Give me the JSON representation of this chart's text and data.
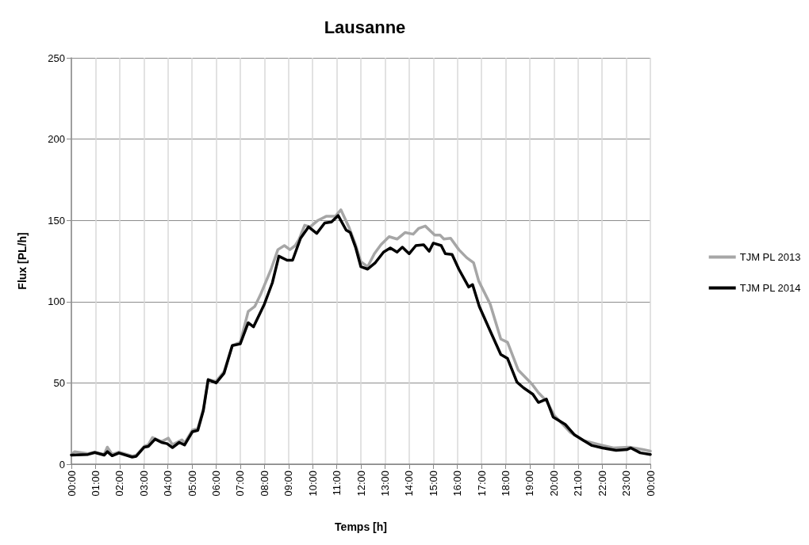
{
  "chart_data": {
    "type": "line",
    "title": "Lausanne",
    "xlabel": "Temps [h]",
    "ylabel": "Flux [PL/h]",
    "xlim": [
      0,
      24
    ],
    "xticks": [
      {
        "value": 0,
        "label": "00:00"
      },
      {
        "value": 1,
        "label": "01:00"
      },
      {
        "value": 2,
        "label": "02:00"
      },
      {
        "value": 3,
        "label": "03:00"
      },
      {
        "value": 4,
        "label": "04:00"
      },
      {
        "value": 5,
        "label": "05:00"
      },
      {
        "value": 6,
        "label": "06:00"
      },
      {
        "value": 7,
        "label": "07:00"
      },
      {
        "value": 8,
        "label": "08:00"
      },
      {
        "value": 9,
        "label": "09:00"
      },
      {
        "value": 10,
        "label": "10:00"
      },
      {
        "value": 11,
        "label": "11:00"
      },
      {
        "value": 12,
        "label": "12:00"
      },
      {
        "value": 13,
        "label": "13:00"
      },
      {
        "value": 14,
        "label": "14:00"
      },
      {
        "value": 15,
        "label": "15:00"
      },
      {
        "value": 16,
        "label": "16:00"
      },
      {
        "value": 17,
        "label": "17:00"
      },
      {
        "value": 18,
        "label": "18:00"
      },
      {
        "value": 19,
        "label": "19:00"
      },
      {
        "value": 20,
        "label": "20:00"
      },
      {
        "value": 21,
        "label": "21:00"
      },
      {
        "value": 22,
        "label": "22:00"
      },
      {
        "value": 23,
        "label": "23:00"
      },
      {
        "value": 24,
        "label": "00:00"
      }
    ],
    "ylim": [
      0,
      250
    ],
    "yticks": [
      0,
      50,
      100,
      150,
      200,
      250
    ],
    "grid": true,
    "legend": "right",
    "marker": "none",
    "line_style": "solid",
    "series": [
      {
        "name": "TJM PL 2013",
        "color": "#a6a6a6",
        "x": [
          0,
          0.13,
          0.69,
          0.97,
          1.36,
          1.49,
          1.69,
          1.97,
          2.52,
          2.69,
          3.02,
          3.19,
          3.36,
          3.74,
          4.02,
          4.19,
          4.58,
          4.69,
          5.02,
          5.24,
          5.47,
          5.67,
          6.0,
          6.33,
          6.67,
          7.0,
          7.33,
          7.6,
          7.83,
          8.28,
          8.56,
          8.83,
          9.06,
          9.28,
          9.44,
          9.67,
          9.9,
          10.22,
          10.56,
          10.94,
          11.17,
          11.5,
          11.78,
          12.0,
          12.28,
          12.56,
          12.83,
          13.17,
          13.5,
          13.83,
          14.17,
          14.39,
          14.67,
          15.06,
          15.28,
          15.44,
          15.72,
          16.06,
          16.39,
          16.67,
          16.89,
          17.36,
          17.8,
          18.08,
          18.52,
          19.08,
          19.36,
          19.69,
          20.02,
          20.69,
          21.24,
          21.9,
          22.47,
          23.13,
          23.69,
          24
        ],
        "values": [
          6,
          7.7,
          6.5,
          7.5,
          6,
          10.5,
          6,
          7.5,
          5,
          5.5,
          11,
          12,
          16.4,
          14,
          16,
          12,
          15,
          13,
          21,
          22,
          34,
          52,
          51,
          57,
          73,
          75,
          94,
          97,
          104,
          120,
          132,
          134.5,
          132,
          134.5,
          138.5,
          147,
          146,
          150,
          152.5,
          152.5,
          156.5,
          146,
          135,
          124.5,
          121.5,
          129.5,
          135,
          140,
          138.5,
          142.5,
          141.5,
          145,
          146.5,
          141,
          141,
          138.5,
          139,
          132,
          127,
          124,
          112.5,
          98.5,
          77,
          75,
          58,
          49.5,
          44,
          39,
          30,
          19.5,
          14.5,
          12,
          10,
          10.5,
          9,
          8
        ]
      },
      {
        "name": "TJM PL 2014",
        "color": "#000000",
        "x": [
          0,
          0.69,
          0.97,
          1.36,
          1.49,
          1.69,
          1.97,
          2.52,
          2.69,
          3.02,
          3.19,
          3.47,
          3.74,
          3.97,
          4.19,
          4.47,
          4.69,
          5.02,
          5.24,
          5.47,
          5.67,
          6.0,
          6.33,
          6.67,
          7.0,
          7.33,
          7.55,
          8.0,
          8.33,
          8.6,
          8.94,
          9.17,
          9.5,
          9.83,
          10.17,
          10.5,
          10.78,
          11.06,
          11.39,
          11.56,
          11.78,
          12.0,
          12.28,
          12.6,
          12.94,
          13.22,
          13.5,
          13.72,
          14.0,
          14.28,
          14.6,
          14.83,
          15.0,
          15.33,
          15.5,
          15.78,
          16.06,
          16.47,
          16.63,
          16.91,
          17.36,
          17.8,
          18.08,
          18.47,
          18.74,
          19.13,
          19.36,
          19.69,
          19.97,
          20.47,
          20.86,
          21.24,
          21.58,
          22.02,
          22.58,
          23.02,
          23.19,
          23.58,
          24
        ],
        "values": [
          5.6,
          6,
          7.2,
          5.6,
          7.7,
          5.2,
          6.9,
          4.4,
          4.9,
          10.5,
          11,
          15.4,
          13.4,
          12.6,
          10.2,
          13.4,
          11.8,
          20,
          20.8,
          33,
          52,
          50,
          56,
          73,
          74,
          87,
          84.5,
          98.5,
          111.6,
          128,
          125.5,
          125.5,
          139,
          146,
          142,
          148.4,
          149,
          153,
          144,
          142.5,
          133.5,
          121.5,
          120,
          124,
          130.5,
          133,
          130.5,
          133.5,
          129.5,
          134.5,
          135,
          131,
          136,
          134.5,
          129.5,
          129,
          120,
          109,
          110.5,
          97,
          82,
          67.5,
          65,
          50.5,
          47,
          43,
          38,
          40,
          29,
          24.5,
          18,
          14.5,
          11.5,
          10,
          8.5,
          9,
          10,
          7,
          6
        ]
      }
    ]
  }
}
